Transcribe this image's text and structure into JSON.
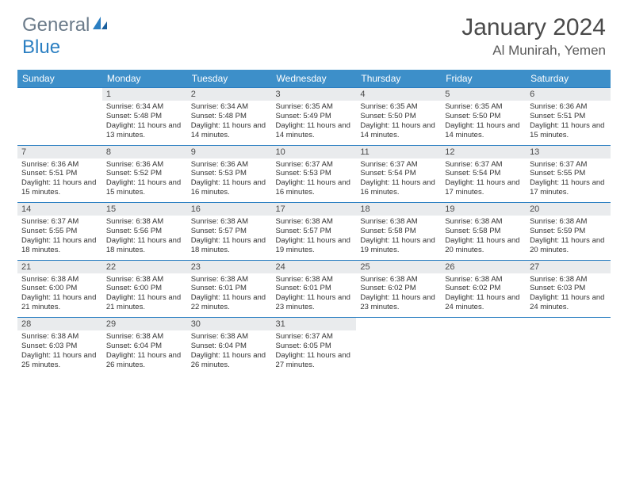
{
  "brand": {
    "part1": "General",
    "part2": "Blue"
  },
  "title": "January 2024",
  "location": "Al Munirah, Yemen",
  "colors": {
    "header_bg": "#3d8fc9",
    "header_text": "#ffffff",
    "daynum_bg": "#e9ebed",
    "daynum_border": "#2b7fc2",
    "body_text": "#333333",
    "title_text": "#4a4a4a",
    "logo_gray": "#6b7b8a",
    "logo_blue": "#2b7fc2",
    "background": "#ffffff"
  },
  "dow": [
    "Sunday",
    "Monday",
    "Tuesday",
    "Wednesday",
    "Thursday",
    "Friday",
    "Saturday"
  ],
  "weeks": [
    [
      null,
      {
        "n": "1",
        "sr": "6:34 AM",
        "ss": "5:48 PM",
        "dl": "11 hours and 13 minutes."
      },
      {
        "n": "2",
        "sr": "6:34 AM",
        "ss": "5:48 PM",
        "dl": "11 hours and 14 minutes."
      },
      {
        "n": "3",
        "sr": "6:35 AM",
        "ss": "5:49 PM",
        "dl": "11 hours and 14 minutes."
      },
      {
        "n": "4",
        "sr": "6:35 AM",
        "ss": "5:50 PM",
        "dl": "11 hours and 14 minutes."
      },
      {
        "n": "5",
        "sr": "6:35 AM",
        "ss": "5:50 PM",
        "dl": "11 hours and 14 minutes."
      },
      {
        "n": "6",
        "sr": "6:36 AM",
        "ss": "5:51 PM",
        "dl": "11 hours and 15 minutes."
      }
    ],
    [
      {
        "n": "7",
        "sr": "6:36 AM",
        "ss": "5:51 PM",
        "dl": "11 hours and 15 minutes."
      },
      {
        "n": "8",
        "sr": "6:36 AM",
        "ss": "5:52 PM",
        "dl": "11 hours and 15 minutes."
      },
      {
        "n": "9",
        "sr": "6:36 AM",
        "ss": "5:53 PM",
        "dl": "11 hours and 16 minutes."
      },
      {
        "n": "10",
        "sr": "6:37 AM",
        "ss": "5:53 PM",
        "dl": "11 hours and 16 minutes."
      },
      {
        "n": "11",
        "sr": "6:37 AM",
        "ss": "5:54 PM",
        "dl": "11 hours and 16 minutes."
      },
      {
        "n": "12",
        "sr": "6:37 AM",
        "ss": "5:54 PM",
        "dl": "11 hours and 17 minutes."
      },
      {
        "n": "13",
        "sr": "6:37 AM",
        "ss": "5:55 PM",
        "dl": "11 hours and 17 minutes."
      }
    ],
    [
      {
        "n": "14",
        "sr": "6:37 AM",
        "ss": "5:55 PM",
        "dl": "11 hours and 18 minutes."
      },
      {
        "n": "15",
        "sr": "6:38 AM",
        "ss": "5:56 PM",
        "dl": "11 hours and 18 minutes."
      },
      {
        "n": "16",
        "sr": "6:38 AM",
        "ss": "5:57 PM",
        "dl": "11 hours and 18 minutes."
      },
      {
        "n": "17",
        "sr": "6:38 AM",
        "ss": "5:57 PM",
        "dl": "11 hours and 19 minutes."
      },
      {
        "n": "18",
        "sr": "6:38 AM",
        "ss": "5:58 PM",
        "dl": "11 hours and 19 minutes."
      },
      {
        "n": "19",
        "sr": "6:38 AM",
        "ss": "5:58 PM",
        "dl": "11 hours and 20 minutes."
      },
      {
        "n": "20",
        "sr": "6:38 AM",
        "ss": "5:59 PM",
        "dl": "11 hours and 20 minutes."
      }
    ],
    [
      {
        "n": "21",
        "sr": "6:38 AM",
        "ss": "6:00 PM",
        "dl": "11 hours and 21 minutes."
      },
      {
        "n": "22",
        "sr": "6:38 AM",
        "ss": "6:00 PM",
        "dl": "11 hours and 21 minutes."
      },
      {
        "n": "23",
        "sr": "6:38 AM",
        "ss": "6:01 PM",
        "dl": "11 hours and 22 minutes."
      },
      {
        "n": "24",
        "sr": "6:38 AM",
        "ss": "6:01 PM",
        "dl": "11 hours and 23 minutes."
      },
      {
        "n": "25",
        "sr": "6:38 AM",
        "ss": "6:02 PM",
        "dl": "11 hours and 23 minutes."
      },
      {
        "n": "26",
        "sr": "6:38 AM",
        "ss": "6:02 PM",
        "dl": "11 hours and 24 minutes."
      },
      {
        "n": "27",
        "sr": "6:38 AM",
        "ss": "6:03 PM",
        "dl": "11 hours and 24 minutes."
      }
    ],
    [
      {
        "n": "28",
        "sr": "6:38 AM",
        "ss": "6:03 PM",
        "dl": "11 hours and 25 minutes."
      },
      {
        "n": "29",
        "sr": "6:38 AM",
        "ss": "6:04 PM",
        "dl": "11 hours and 26 minutes."
      },
      {
        "n": "30",
        "sr": "6:38 AM",
        "ss": "6:04 PM",
        "dl": "11 hours and 26 minutes."
      },
      {
        "n": "31",
        "sr": "6:37 AM",
        "ss": "6:05 PM",
        "dl": "11 hours and 27 minutes."
      },
      null,
      null,
      null
    ]
  ],
  "labels": {
    "sunrise": "Sunrise:",
    "sunset": "Sunset:",
    "daylight": "Daylight:"
  }
}
